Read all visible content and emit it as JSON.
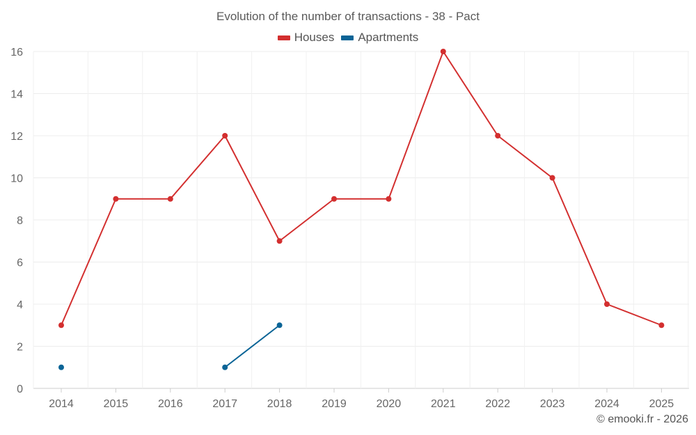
{
  "chart_data": {
    "type": "line",
    "title": "Evolution of the number of transactions - 38 - Pact",
    "xlabel": "",
    "ylabel": "",
    "categories": [
      "2014",
      "2015",
      "2016",
      "2017",
      "2018",
      "2019",
      "2020",
      "2021",
      "2022",
      "2023",
      "2024",
      "2025"
    ],
    "ylim": [
      0,
      16
    ],
    "yticks": [
      0,
      2,
      4,
      6,
      8,
      10,
      12,
      14,
      16
    ],
    "grid": true,
    "legend_position": "top-center",
    "series": [
      {
        "name": "Houses",
        "color": "#d32f2f",
        "values": [
          3,
          9,
          9,
          12,
          7,
          9,
          9,
          16,
          12,
          10,
          4,
          3
        ]
      },
      {
        "name": "Apartments",
        "color": "#0a6496",
        "values": [
          1,
          null,
          null,
          1,
          3,
          null,
          null,
          null,
          null,
          null,
          null,
          null
        ]
      }
    ]
  },
  "footer": {
    "credit": "© emooki.fr - 2026"
  }
}
